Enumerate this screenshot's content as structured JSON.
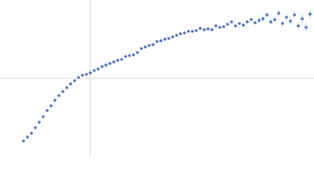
{
  "chart_data": {
    "type": "scatter",
    "xlim": [
      -1.15,
      2.85
    ],
    "ylim": [
      -1,
      1
    ],
    "x": [
      -0.85,
      -0.8,
      -0.75,
      -0.7,
      -0.65,
      -0.6,
      -0.55,
      -0.5,
      -0.45,
      -0.4,
      -0.35,
      -0.3,
      -0.25,
      -0.2,
      -0.15,
      -0.1,
      -0.05,
      0,
      0.05,
      0.1,
      0.15,
      0.2,
      0.25,
      0.3,
      0.35,
      0.4,
      0.45,
      0.5,
      0.55,
      0.6,
      0.65,
      0.7,
      0.75,
      0.8,
      0.85,
      0.9,
      0.95,
      1,
      1.05,
      1.1,
      1.15,
      1.2,
      1.25,
      1.3,
      1.35,
      1.4,
      1.45,
      1.5,
      1.55,
      1.6,
      1.65,
      1.7,
      1.75,
      1.8,
      1.85,
      1.9,
      1.95,
      2,
      2.05,
      2.1,
      2.15,
      2.2,
      2.25,
      2.3,
      2.35,
      2.4,
      2.45,
      2.5,
      2.55,
      2.6,
      2.65,
      2.7,
      2.75,
      2.8
    ],
    "series": [
      {
        "color": "#3d6cbf",
        "values": [
          -0.8,
          -0.75,
          -0.7,
          -0.63,
          -0.56,
          -0.49,
          -0.41,
          -0.35,
          -0.28,
          -0.22,
          -0.17,
          -0.12,
          -0.07,
          -0.03,
          0.01,
          0.04,
          0.05,
          0.07,
          0.1,
          0.12,
          0.15,
          0.17,
          0.19,
          0.21,
          0.23,
          0.24,
          0.28,
          0.29,
          0.3,
          0.33,
          0.38,
          0.4,
          0.42,
          0.43,
          0.47,
          0.48,
          0.5,
          0.51,
          0.53,
          0.55,
          0.57,
          0.58,
          0.6,
          0.6,
          0.61,
          0.64,
          0.62,
          0.63,
          0.62,
          0.67,
          0.65,
          0.66,
          0.69,
          0.72,
          0.67,
          0.7,
          0.68,
          0.72,
          0.75,
          0.71,
          0.74,
          0.76,
          0.81,
          0.72,
          0.75,
          0.83,
          0.7,
          0.78,
          0.73,
          0.81,
          0.67,
          0.76,
          0.65,
          0.82
        ],
        "errors": [
          0.005,
          0.005,
          0.005,
          0.005,
          0.005,
          0.005,
          0.005,
          0.005,
          0.005,
          0.005,
          0.005,
          0.005,
          0.005,
          0.005,
          0.005,
          0.005,
          0.005,
          0.005,
          0.005,
          0.005,
          0.005,
          0.005,
          0.005,
          0.005,
          0.005,
          0.005,
          0.005,
          0.005,
          0.005,
          0.005,
          0.01,
          0.01,
          0.01,
          0.01,
          0.01,
          0.01,
          0.01,
          0.01,
          0.01,
          0.01,
          0.01,
          0.01,
          0.01,
          0.01,
          0.01,
          0.01,
          0.01,
          0.01,
          0.01,
          0.01,
          0.02,
          0.02,
          0.02,
          0.02,
          0.02,
          0.02,
          0.02,
          0.02,
          0.02,
          0.02,
          0.03,
          0.03,
          0.03,
          0.035,
          0.035,
          0.04,
          0.04,
          0.045,
          0.045,
          0.05,
          0.05,
          0.055,
          0.06,
          0.06
        ]
      }
    ]
  }
}
